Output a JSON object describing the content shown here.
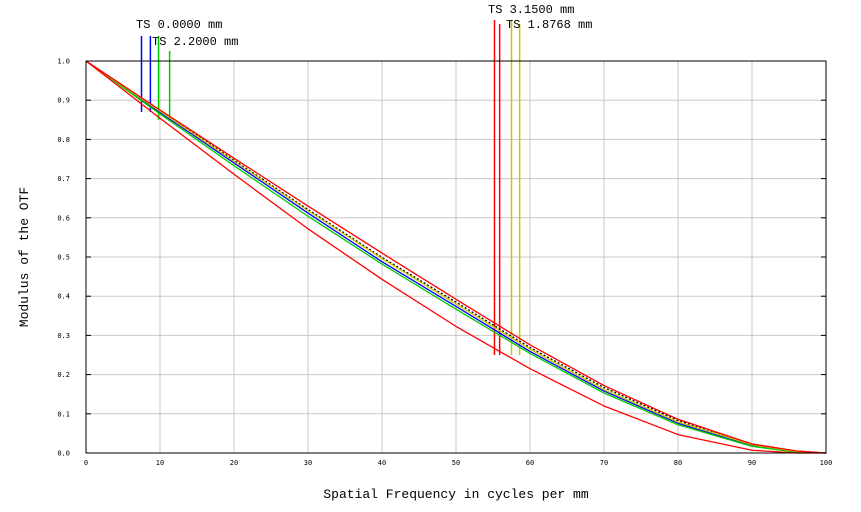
{
  "chart_data": {
    "type": "line",
    "title": "",
    "xlabel": "Spatial Frequency in cycles per mm",
    "ylabel": "Modulus of the OTF",
    "xlim": [
      0,
      100
    ],
    "ylim": [
      0,
      1
    ],
    "x_ticks": [
      "0",
      "10",
      "20",
      "30",
      "40",
      "50",
      "60",
      "70",
      "80",
      "90",
      "100"
    ],
    "y_ticks": [
      "0.0",
      "0.1",
      "0.2",
      "0.3",
      "0.4",
      "0.5",
      "0.6",
      "0.7",
      "0.8",
      "0.9",
      "1.0"
    ],
    "grid": true,
    "legend": "field labels at top",
    "field_labels": [
      "TS 0.0000 mm",
      "TS 2.2000 mm",
      "TS 3.1500 mm",
      "TS 1.8768 mm"
    ],
    "colors": {
      "diffraction": "#000000",
      "field_0": "#0000ff",
      "field_2_2": "#00cc00",
      "field_3_15": "#ff0000",
      "field_1_8768": "#c8c800",
      "grid": "#c8c8c8"
    },
    "x": [
      0,
      10,
      20,
      30,
      40,
      50,
      60,
      70,
      80,
      90,
      96,
      100
    ],
    "series": [
      {
        "color": "#000000",
        "dashed": true,
        "values": [
          1.0,
          0.873,
          0.747,
          0.621,
          0.499,
          0.385,
          0.269,
          0.167,
          0.083,
          0.023,
          0.005,
          0.0
        ]
      },
      {
        "color": "#0000ff",
        "values": [
          1.0,
          0.869,
          0.74,
          0.612,
          0.488,
          0.374,
          0.259,
          0.158,
          0.076,
          0.019,
          0.003,
          0.0
        ]
      },
      {
        "color": "#00cc00",
        "values": [
          1.0,
          0.865,
          0.733,
          0.604,
          0.482,
          0.367,
          0.254,
          0.153,
          0.072,
          0.017,
          0.002,
          0.0
        ]
      },
      {
        "color": "#c8c800",
        "values": [
          1.0,
          0.872,
          0.744,
          0.618,
          0.496,
          0.38,
          0.265,
          0.162,
          0.079,
          0.021,
          0.004,
          0.0
        ]
      },
      {
        "color": "#ff0000",
        "values": [
          1.0,
          0.875,
          0.752,
          0.63,
          0.51,
          0.392,
          0.276,
          0.172,
          0.086,
          0.023,
          0.005,
          0.0
        ]
      },
      {
        "color": "#ff0000",
        "values": [
          1.0,
          0.854,
          0.711,
          0.572,
          0.443,
          0.323,
          0.215,
          0.12,
          0.047,
          0.007,
          0.0,
          0.0
        ]
      }
    ],
    "markers": [
      {
        "label_index": 0,
        "frequencies": [
          7.5,
          8.7
        ],
        "color": "#0000ff"
      },
      {
        "label_index": 1,
        "frequencies": [
          9.8,
          11.3
        ],
        "color": "#00cc00"
      },
      {
        "label_index": 2,
        "frequencies": [
          55.2,
          55.9
        ],
        "color": "#ff0000"
      },
      {
        "label_index": 3,
        "frequencies": [
          57.5,
          58.6
        ],
        "color": "#c8c800"
      }
    ]
  }
}
